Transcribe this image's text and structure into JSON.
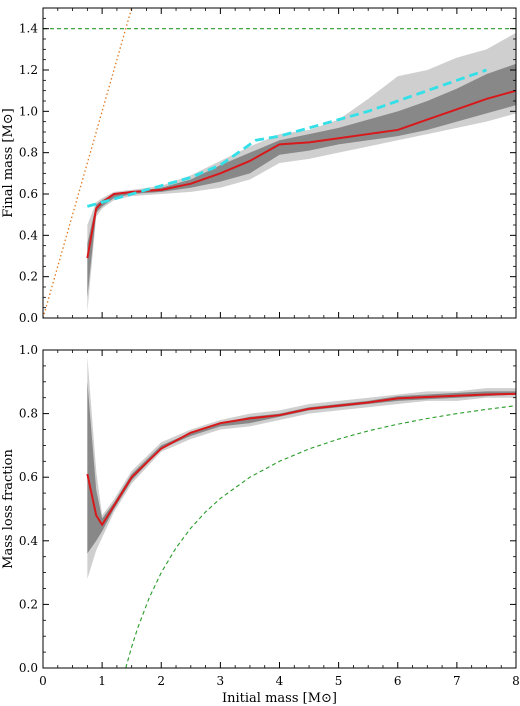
{
  "chart_data": [
    {
      "type": "line",
      "xlabel": "",
      "ylabel": "Final mass [M⊙]",
      "xlim": [
        0,
        8
      ],
      "ylim": [
        0,
        1.5
      ],
      "xticks": [
        0,
        1,
        2,
        3,
        4,
        5,
        6,
        7,
        8
      ],
      "xtick_labels_shown": false,
      "yticks": [
        0,
        0.2,
        0.4,
        0.6,
        0.8,
        1.0,
        1.2,
        1.4
      ],
      "ytick_labels": [
        "0.0",
        "0.2",
        "0.4",
        "0.6",
        "0.8",
        "1.0",
        "1.2",
        "1.4"
      ],
      "grid": false,
      "bands": [
        {
          "color": "#cfcfcf",
          "x": [
            0.75,
            0.9,
            1.0,
            1.2,
            1.5,
            2.0,
            2.5,
            3.0,
            3.5,
            4.0,
            4.5,
            5.0,
            5.5,
            6.0,
            6.5,
            7.0,
            7.5,
            8.0
          ],
          "lower": [
            0.03,
            0.49,
            0.53,
            0.57,
            0.59,
            0.6,
            0.61,
            0.63,
            0.67,
            0.75,
            0.77,
            0.8,
            0.83,
            0.86,
            0.89,
            0.92,
            0.95,
            0.99
          ],
          "upper": [
            0.45,
            0.56,
            0.58,
            0.61,
            0.62,
            0.64,
            0.69,
            0.76,
            0.83,
            0.89,
            0.91,
            0.96,
            1.06,
            1.17,
            1.2,
            1.26,
            1.3,
            1.38
          ]
        },
        {
          "color": "#888888",
          "x": [
            0.75,
            0.9,
            1.0,
            1.2,
            1.5,
            2.0,
            2.5,
            3.0,
            3.5,
            4.0,
            4.5,
            5.0,
            5.5,
            6.0,
            6.5,
            7.0,
            7.5,
            8.0
          ],
          "lower": [
            0.1,
            0.51,
            0.54,
            0.58,
            0.6,
            0.61,
            0.63,
            0.66,
            0.7,
            0.79,
            0.81,
            0.84,
            0.86,
            0.88,
            0.91,
            0.95,
            0.99,
            1.03
          ],
          "upper": [
            0.36,
            0.55,
            0.57,
            0.6,
            0.61,
            0.63,
            0.67,
            0.74,
            0.8,
            0.86,
            0.89,
            0.92,
            0.96,
            1.0,
            1.05,
            1.11,
            1.18,
            1.23
          ]
        }
      ],
      "series": [
        {
          "color": "#d7191c",
          "style": "solid",
          "x": [
            0.75,
            0.9,
            1.0,
            1.2,
            1.5,
            2.0,
            2.5,
            3.0,
            3.5,
            4.0,
            4.5,
            5.0,
            5.5,
            6.0,
            6.5,
            7.0,
            7.5,
            8.0
          ],
          "y": [
            0.29,
            0.53,
            0.56,
            0.6,
            0.61,
            0.62,
            0.65,
            0.7,
            0.76,
            0.84,
            0.85,
            0.87,
            0.89,
            0.91,
            0.96,
            1.01,
            1.06,
            1.1
          ]
        },
        {
          "color": "#33e0e8",
          "style": "dashed",
          "x": [
            0.75,
            1.0,
            1.5,
            2.0,
            2.5,
            3.0,
            3.3,
            3.6,
            4.0,
            4.5,
            5.0,
            5.5,
            6.0,
            6.5,
            7.0,
            7.5
          ],
          "y": [
            0.54,
            0.56,
            0.6,
            0.64,
            0.68,
            0.74,
            0.8,
            0.86,
            0.88,
            0.92,
            0.96,
            1.0,
            1.05,
            1.1,
            1.15,
            1.2
          ]
        },
        {
          "color": "#2a9d2a",
          "style": "dashed",
          "x": [
            0,
            8
          ],
          "y": [
            1.4,
            1.4
          ]
        },
        {
          "color": "#e07b24",
          "style": "dotted",
          "x": [
            0,
            1.5
          ],
          "y": [
            0,
            1.5
          ]
        }
      ]
    },
    {
      "type": "line",
      "xlabel": "Initial mass [M⊙]",
      "ylabel": "Mass loss fraction",
      "xlim": [
        0,
        8
      ],
      "ylim": [
        0,
        1.0
      ],
      "xticks": [
        0,
        1,
        2,
        3,
        4,
        5,
        6,
        7,
        8
      ],
      "xtick_labels": [
        "0",
        "1",
        "2",
        "3",
        "4",
        "5",
        "6",
        "7",
        "8"
      ],
      "yticks": [
        0,
        0.2,
        0.4,
        0.6,
        0.8,
        1.0
      ],
      "ytick_labels": [
        "0.0",
        "0.2",
        "0.4",
        "0.6",
        "0.8",
        "1.0"
      ],
      "grid": false,
      "bands": [
        {
          "color": "#cfcfcf",
          "x": [
            0.75,
            0.9,
            1.0,
            1.2,
            1.5,
            2.0,
            2.5,
            3.0,
            3.5,
            4.0,
            4.5,
            5.0,
            5.5,
            6.0,
            6.5,
            7.0,
            7.5,
            8.0
          ],
          "lower": [
            0.28,
            0.37,
            0.41,
            0.49,
            0.58,
            0.68,
            0.72,
            0.75,
            0.76,
            0.78,
            0.8,
            0.81,
            0.82,
            0.83,
            0.84,
            0.84,
            0.85,
            0.85
          ],
          "upper": [
            0.98,
            0.62,
            0.48,
            0.53,
            0.62,
            0.71,
            0.75,
            0.78,
            0.8,
            0.81,
            0.83,
            0.84,
            0.85,
            0.86,
            0.87,
            0.87,
            0.88,
            0.88
          ]
        },
        {
          "color": "#888888",
          "x": [
            0.75,
            0.9,
            1.0,
            1.2,
            1.5,
            2.0,
            2.5,
            3.0,
            3.5,
            4.0,
            4.5,
            5.0,
            5.5,
            6.0,
            6.5,
            7.0,
            7.5,
            8.0
          ],
          "lower": [
            0.36,
            0.4,
            0.43,
            0.5,
            0.59,
            0.69,
            0.73,
            0.76,
            0.77,
            0.79,
            0.81,
            0.82,
            0.83,
            0.84,
            0.845,
            0.85,
            0.855,
            0.86
          ],
          "upper": [
            0.9,
            0.56,
            0.47,
            0.52,
            0.61,
            0.7,
            0.74,
            0.77,
            0.79,
            0.8,
            0.82,
            0.83,
            0.84,
            0.855,
            0.86,
            0.865,
            0.87,
            0.87
          ]
        }
      ],
      "series": [
        {
          "color": "#d7191c",
          "style": "solid",
          "x": [
            0.75,
            0.9,
            1.0,
            1.2,
            1.5,
            2.0,
            2.5,
            3.0,
            3.5,
            4.0,
            4.5,
            5.0,
            5.5,
            6.0,
            6.5,
            7.0,
            7.5,
            8.0
          ],
          "y": [
            0.61,
            0.48,
            0.45,
            0.51,
            0.6,
            0.69,
            0.74,
            0.77,
            0.785,
            0.795,
            0.815,
            0.825,
            0.835,
            0.848,
            0.852,
            0.856,
            0.86,
            0.862
          ]
        },
        {
          "color": "#2a9d2a",
          "style": "dashed",
          "x": [
            1.4,
            1.5,
            1.6,
            1.8,
            2.0,
            2.25,
            2.5,
            2.75,
            3.0,
            3.5,
            4.0,
            4.5,
            5.0,
            5.5,
            6.0,
            6.5,
            7.0,
            7.5,
            8.0
          ],
          "y": [
            0.0,
            0.0667,
            0.125,
            0.2222,
            0.3,
            0.3778,
            0.44,
            0.4909,
            0.5333,
            0.6,
            0.65,
            0.6889,
            0.72,
            0.7455,
            0.7667,
            0.7846,
            0.8,
            0.8133,
            0.825
          ]
        }
      ]
    }
  ]
}
